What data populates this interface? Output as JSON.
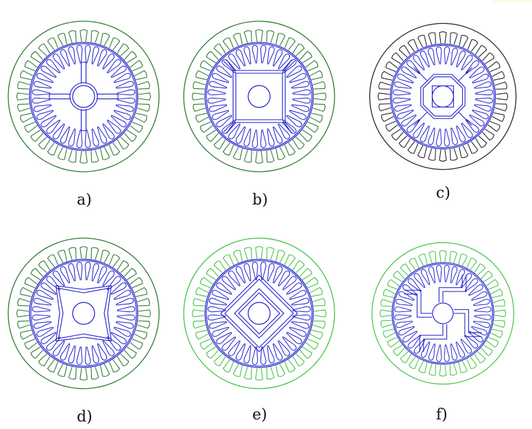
{
  "figure": {
    "captions": [
      "a)",
      "b)",
      "c)",
      "d)",
      "e)",
      "f)"
    ],
    "colors": {
      "stator_dark": "#2f7a2f",
      "stator_light": "#44c244",
      "rotor": "#1a1acc",
      "outline_black": "#222222"
    },
    "panels": [
      {
        "label": "a)",
        "rotor_type": "spoke-cross",
        "stator_color": "stator_dark"
      },
      {
        "label": "b)",
        "rotor_type": "square-barrier",
        "stator_color": "stator_dark"
      },
      {
        "label": "c)",
        "rotor_type": "octagon-barrier",
        "stator_color": "outline_black"
      },
      {
        "label": "d)",
        "rotor_type": "x-barrier",
        "stator_color": "stator_dark"
      },
      {
        "label": "e)",
        "rotor_type": "diamond-barrier",
        "stator_color": "stator_light"
      },
      {
        "label": "f)",
        "rotor_type": "pinwheel-barrier",
        "stator_color": "stator_light"
      }
    ]
  }
}
